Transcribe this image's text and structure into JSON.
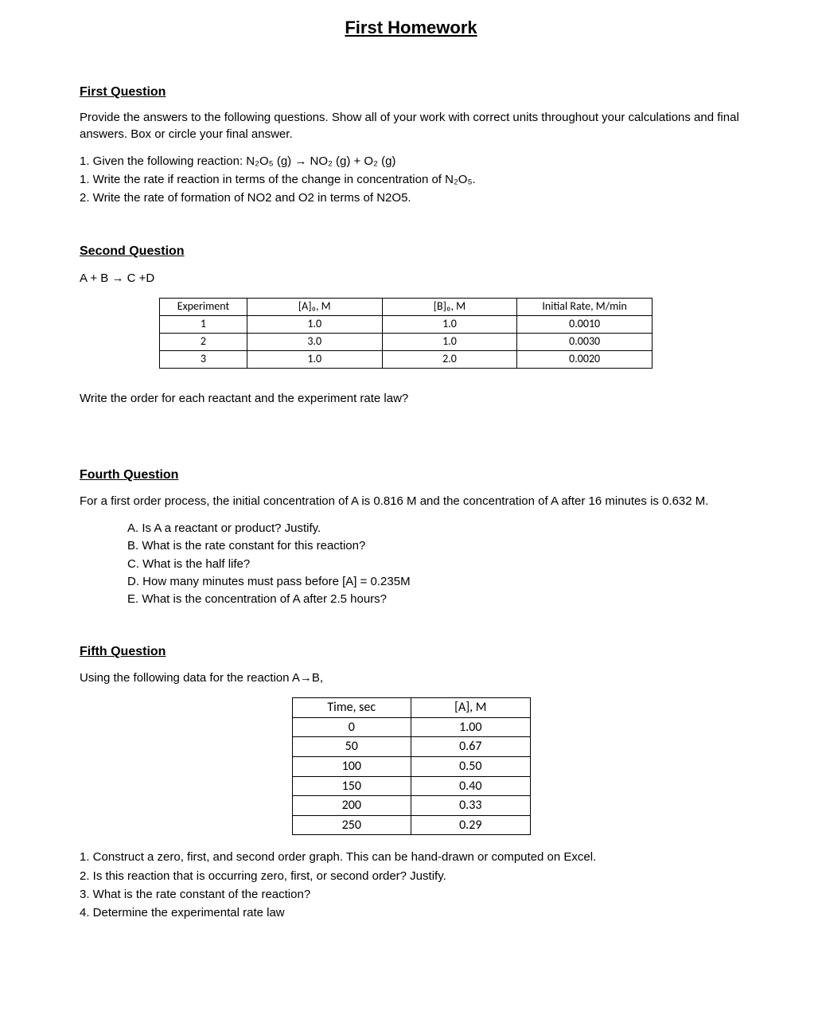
{
  "title": "First Homework",
  "q1": {
    "heading": "First Question",
    "intro": "Provide the answers to the following questions. Show all of your work with correct units throughout your calculations and final answers. Box or circle your final answer.",
    "item1_prefix": "1.  Given the following reaction: ",
    "item1_eq": "N₂O₅ (g) → NO₂ (g) + O₂ (g)",
    "sub1_prefix": "1.  Write the rate if reaction in terms of the change in concentration of ",
    "sub1_eq": "N₂O₅.",
    "sub2": "2.  Write the rate of formation of NO2 and O2 in terms of N2O5."
  },
  "q2": {
    "heading": "Second Question",
    "equation": "A + B → C +D",
    "table": {
      "headers": [
        "Experiment",
        "[A]₀, M",
        "[B]₀, M",
        "Initial Rate, M/min"
      ],
      "rows": [
        [
          "1",
          "1.0",
          "1.0",
          "0.0010"
        ],
        [
          "2",
          "3.0",
          "1.0",
          "0.0030"
        ],
        [
          "3",
          "1.0",
          "2.0",
          "0.0020"
        ]
      ],
      "col_widths": [
        "110px",
        "170px",
        "170px",
        "170px"
      ]
    },
    "after": "Write the order for each reactant and the experiment rate law?"
  },
  "q4": {
    "heading": "Fourth Question",
    "intro": "For a first order process, the initial concentration of A is 0.816 M and the concentration of A after 16 minutes is 0.632 M.",
    "items": [
      "A.  Is A a reactant or product? Justify.",
      "B.  What is the rate constant for this reaction?",
      "C.  What is the half life?",
      "D.  How many minutes must pass before [A] = 0.235M",
      "E.  What is the concentration of A after 2.5 hours?"
    ]
  },
  "q5": {
    "heading": "Fifth Question",
    "intro": " Using the following data for the reaction A→B,",
    "table": {
      "headers": [
        "Time, sec",
        "[A], M"
      ],
      "rows": [
        [
          "0",
          "1.00"
        ],
        [
          "50",
          "0.67"
        ],
        [
          "100",
          "0.50"
        ],
        [
          "150",
          "0.40"
        ],
        [
          "200",
          "0.33"
        ],
        [
          "250",
          "0.29"
        ]
      ],
      "col_widths": [
        "150px",
        "150px"
      ],
      "font_size": 16
    },
    "items": [
      "1.  Construct a zero, first, and second order graph. This  can be hand-drawn or computed on Excel.",
      "2.  Is this reaction that is occurring zero, first, or second order? Justify.",
      "3.  What is the rate constant of the reaction?",
      "4.  Determine the experimental rate law"
    ]
  }
}
